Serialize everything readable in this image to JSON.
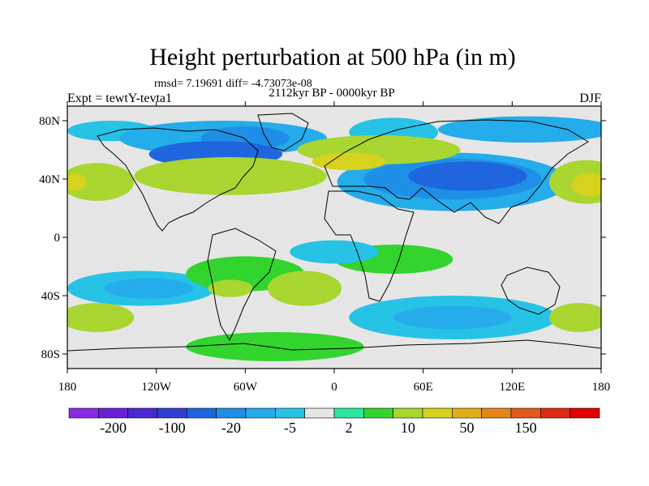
{
  "chart_data": {
    "type": "heatmap",
    "title": "Height perturbation at 500 hPa (in m)",
    "stats_line": "rmsd= 7.19691 diff= -4.73073e-08",
    "subtitle": "2112kyr BP - 0000kyr BP",
    "left_label": "Expt = tewtY-tevta1",
    "right_label": "DJF",
    "x_ticks": [
      {
        "value": -180,
        "label": "180"
      },
      {
        "value": -120,
        "label": "120W"
      },
      {
        "value": -60,
        "label": "60W"
      },
      {
        "value": 0,
        "label": "0"
      },
      {
        "value": 60,
        "label": "60E"
      },
      {
        "value": 120,
        "label": "120E"
      },
      {
        "value": 180,
        "label": "180"
      }
    ],
    "y_ticks": [
      {
        "value": 80,
        "label": "80N"
      },
      {
        "value": 40,
        "label": "40N"
      },
      {
        "value": 0,
        "label": "0"
      },
      {
        "value": -40,
        "label": "40S"
      },
      {
        "value": -80,
        "label": "80S"
      }
    ],
    "xlim": [
      -180,
      180
    ],
    "ylim": [
      -90,
      90
    ],
    "colorbar": {
      "colors": [
        "#8a2be2",
        "#6a1fd6",
        "#4a2ad0",
        "#2f3fd0",
        "#1f66de",
        "#1e8fe6",
        "#25acea",
        "#27c3e6",
        "#e6e6e6",
        "#2ee59c",
        "#33d42e",
        "#a9d631",
        "#d6d21e",
        "#e2ae18",
        "#e6861a",
        "#e05a1c",
        "#df2a12",
        "#e00000"
      ],
      "tick_labels": [
        "-200",
        "-100",
        "-20",
        "-5",
        "2",
        "10",
        "50",
        "150"
      ]
    },
    "blobs": [
      {
        "lon": -150,
        "lat": 73,
        "rx": 30,
        "ry": 7,
        "level": 7
      },
      {
        "lon": -75,
        "lat": 68,
        "rx": 70,
        "ry": 12,
        "level": 6
      },
      {
        "lon": -60,
        "lat": 68,
        "rx": 30,
        "ry": 8,
        "level": 5
      },
      {
        "lon": -80,
        "lat": 57,
        "rx": 45,
        "ry": 9,
        "level": 4
      },
      {
        "lon": 40,
        "lat": 72,
        "rx": 30,
        "ry": 10,
        "level": 7
      },
      {
        "lon": 130,
        "lat": 74,
        "rx": 60,
        "ry": 9,
        "level": 6
      },
      {
        "lon": 80,
        "lat": 38,
        "rx": 78,
        "ry": 20,
        "level": 6
      },
      {
        "lon": 80,
        "lat": 40,
        "rx": 60,
        "ry": 14,
        "level": 5
      },
      {
        "lon": 90,
        "lat": 42,
        "rx": 40,
        "ry": 10,
        "level": 4
      },
      {
        "lon": -160,
        "lat": 38,
        "rx": 25,
        "ry": 13,
        "level": 11
      },
      {
        "lon": 170,
        "lat": 38,
        "rx": 25,
        "ry": 15,
        "level": 11
      },
      {
        "lon": 172,
        "lat": 36,
        "rx": 12,
        "ry": 8,
        "level": 12
      },
      {
        "lon": -175,
        "lat": 38,
        "rx": 8,
        "ry": 6,
        "level": 12
      },
      {
        "lon": -70,
        "lat": 42,
        "rx": 65,
        "ry": 13,
        "level": 11
      },
      {
        "lon": 30,
        "lat": 60,
        "rx": 55,
        "ry": 10,
        "level": 11
      },
      {
        "lon": 10,
        "lat": 52,
        "rx": 25,
        "ry": 6,
        "level": 12
      },
      {
        "lon": -130,
        "lat": -35,
        "rx": 50,
        "ry": 12,
        "level": 7
      },
      {
        "lon": -125,
        "lat": -35,
        "rx": 30,
        "ry": 7,
        "level": 6
      },
      {
        "lon": -60,
        "lat": -25,
        "rx": 40,
        "ry": 12,
        "level": 10
      },
      {
        "lon": -70,
        "lat": -35,
        "rx": 15,
        "ry": 6,
        "level": 11
      },
      {
        "lon": -20,
        "lat": -35,
        "rx": 25,
        "ry": 12,
        "level": 11
      },
      {
        "lon": 80,
        "lat": -55,
        "rx": 70,
        "ry": 15,
        "level": 7
      },
      {
        "lon": 80,
        "lat": -55,
        "rx": 40,
        "ry": 8,
        "level": 6
      },
      {
        "lon": -160,
        "lat": -55,
        "rx": 25,
        "ry": 10,
        "level": 11
      },
      {
        "lon": 165,
        "lat": -55,
        "rx": 20,
        "ry": 10,
        "level": 11
      },
      {
        "lon": -40,
        "lat": -75,
        "rx": 60,
        "ry": 10,
        "level": 10
      },
      {
        "lon": 40,
        "lat": -15,
        "rx": 40,
        "ry": 10,
        "level": 10
      },
      {
        "lon": 0,
        "lat": -10,
        "rx": 30,
        "ry": 8,
        "level": 7
      }
    ]
  }
}
